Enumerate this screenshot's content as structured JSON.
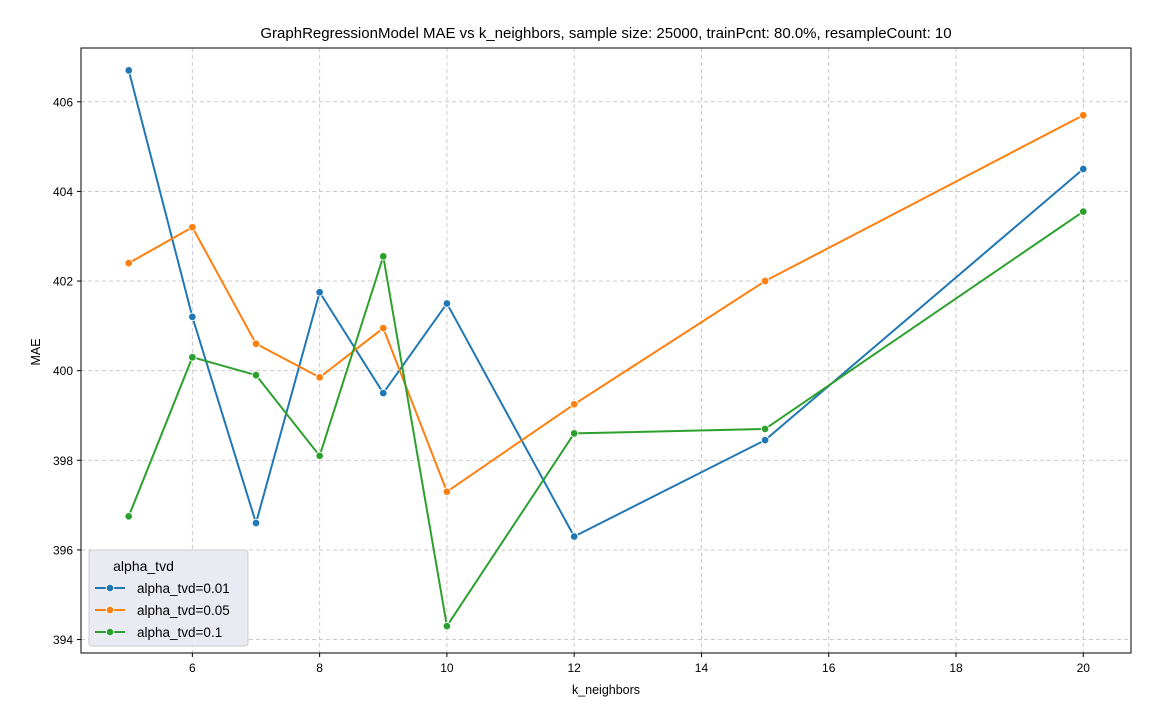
{
  "chart_data": {
    "type": "line",
    "title": "GraphRegressionModel MAE vs k_neighbors, sample size: 25000, trainPcnt: 80.0%, resampleCount: 10",
    "xlabel": "k_neighbors",
    "ylabel": "MAE",
    "xlim": [
      4.25,
      20.75
    ],
    "ylim": [
      393.7,
      407.2
    ],
    "xticks": [
      6,
      8,
      10,
      12,
      14,
      16,
      18,
      20
    ],
    "yticks": [
      394,
      396,
      398,
      400,
      402,
      404,
      406
    ],
    "grid": true,
    "legend": {
      "title": "alpha_tvd",
      "placement": "lower-left"
    },
    "x": [
      5,
      6,
      7,
      8,
      9,
      10,
      12,
      15,
      20
    ],
    "series": [
      {
        "name": "alpha_tvd=0.01",
        "color": "#1f77b4",
        "values": [
          406.7,
          401.2,
          396.6,
          401.75,
          399.5,
          401.5,
          396.3,
          398.45,
          404.5
        ]
      },
      {
        "name": "alpha_tvd=0.05",
        "color": "#ff7f0e",
        "values": [
          402.4,
          403.2,
          400.6,
          399.85,
          400.95,
          397.3,
          399.25,
          402.0,
          405.7
        ]
      },
      {
        "name": "alpha_tvd=0.1",
        "color": "#2ca02c",
        "values": [
          396.75,
          400.3,
          399.9,
          398.1,
          402.55,
          394.3,
          398.6,
          398.7,
          403.55
        ]
      }
    ]
  }
}
